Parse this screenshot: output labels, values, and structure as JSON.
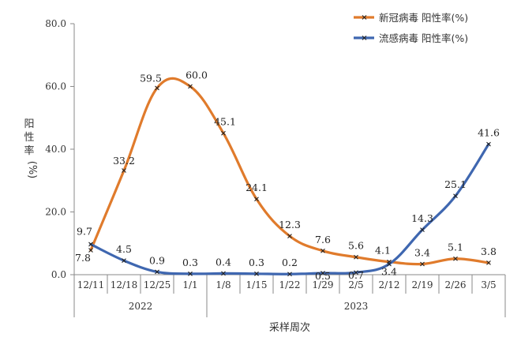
{
  "chart_data": {
    "type": "line",
    "title": "",
    "ylabel": "阳性率 (%)",
    "xlabel": "采样周次",
    "ylim": [
      0,
      80
    ],
    "yticks": [
      "0.0",
      "20.0",
      "40.0",
      "60.0",
      "80.0"
    ],
    "categories": [
      "12/11",
      "12/18",
      "12/25",
      "1/1",
      "1/8",
      "1/15",
      "1/22",
      "1/29",
      "2/5",
      "2/12",
      "2/19",
      "2/26",
      "3/5"
    ],
    "year_groups": [
      {
        "label": "2022",
        "from": 0,
        "to": 3
      },
      {
        "label": "2023",
        "from": 4,
        "to": 12
      }
    ],
    "grid": false,
    "legend_position": "top-right",
    "series": [
      {
        "name": "新冠病毒 阳性率(%)",
        "color": "#E07B2C",
        "values": [
          7.8,
          33.2,
          59.5,
          60.0,
          45.1,
          24.1,
          12.3,
          7.6,
          5.6,
          4.1,
          3.4,
          5.1,
          3.8
        ],
        "labels": [
          "7.8",
          "33.2",
          "59.5",
          "60.0",
          "45.1",
          "24.1",
          "12.3",
          "7.6",
          "5.6",
          "4.1",
          "3.4",
          "5.1",
          "3.8"
        ]
      },
      {
        "name": "流感病毒 阳性率(%)",
        "color": "#3F67B0",
        "values": [
          9.7,
          4.5,
          0.9,
          0.3,
          0.4,
          0.3,
          0.2,
          0.5,
          0.7,
          3.4,
          14.3,
          25.1,
          41.6
        ],
        "labels": [
          "9.7",
          "4.5",
          "0.9",
          "0.3",
          "0.4",
          "0.3",
          "0.2",
          "0.5",
          "0.7",
          "3.4",
          "14.3",
          "25.1",
          "41.6"
        ]
      }
    ]
  }
}
